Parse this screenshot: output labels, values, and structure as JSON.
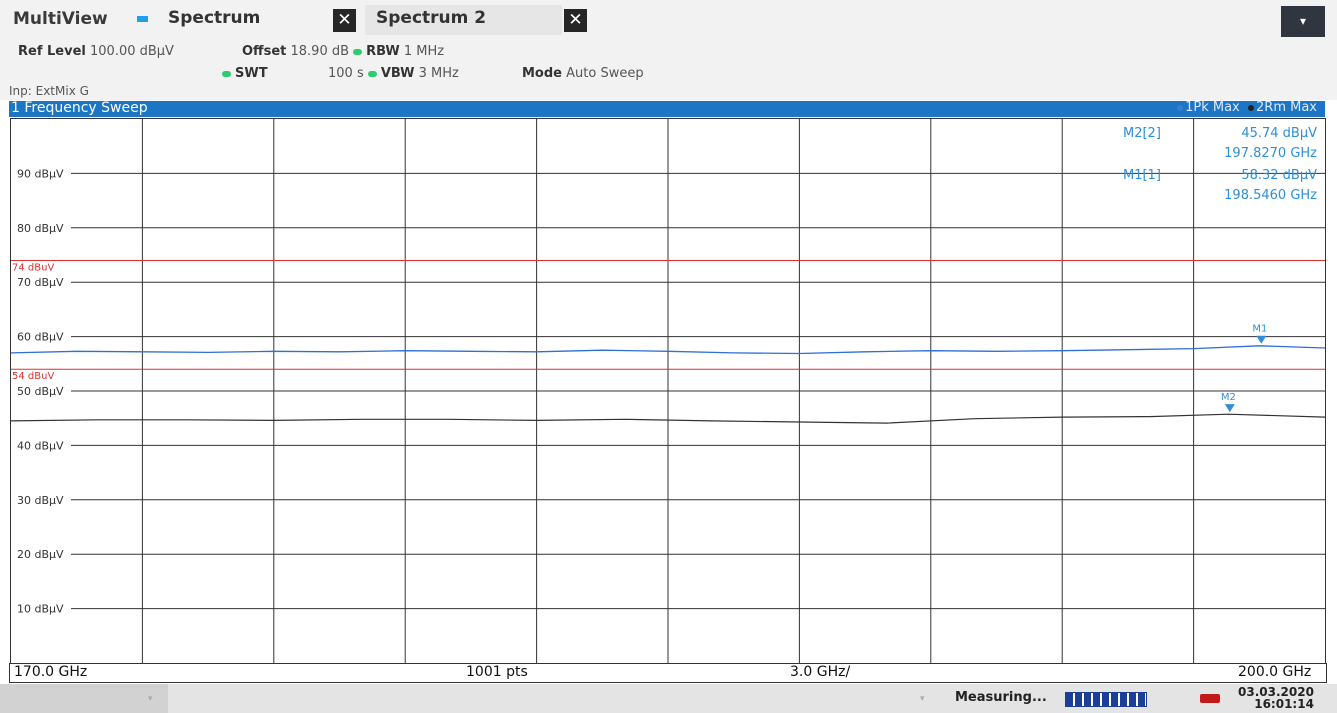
{
  "app": {
    "title": "MultiView"
  },
  "tabs": [
    {
      "label": "Spectrum"
    },
    {
      "label": "Spectrum 2"
    }
  ],
  "params": {
    "ref_level_label": "Ref Level",
    "ref_level_value": "100.00 dBµV",
    "offset_label": "Offset",
    "offset_value": "18.90 dB",
    "rbw_label": "RBW",
    "rbw_value": "1 MHz",
    "swt_label": "SWT",
    "swt_value": "100 s",
    "vbw_label": "VBW",
    "vbw_value": "3 MHz",
    "mode_label": "Mode",
    "mode_value": "Auto Sweep",
    "input": "Inp: ExtMix G"
  },
  "trace_window": {
    "title": "1 Frequency Sweep",
    "legend": [
      {
        "label": "1Pk Max",
        "color": "#3a7bd5"
      },
      {
        "label": "2Rm Max",
        "color": "#222222"
      }
    ]
  },
  "bottom": {
    "start": "170.0 GHz",
    "points": "1001 pts",
    "span": "3.0 GHz/",
    "stop": "200.0 GHz"
  },
  "status": {
    "text": "Measuring...",
    "date": "03.03.2020",
    "time": "16:01:14"
  },
  "chart_data": {
    "type": "line",
    "xlim": [
      170.0,
      200.0
    ],
    "ylim": [
      0,
      100
    ],
    "y_ticks": [
      "90 dBµV",
      "80 dBµV",
      "70 dBµV",
      "60 dBµV",
      "50 dBµV",
      "40 dBµV",
      "30 dBµV",
      "20 dBµV",
      "10 dBµV"
    ],
    "y_tick_values": [
      90,
      80,
      70,
      60,
      50,
      40,
      30,
      20,
      10
    ],
    "grid": true,
    "limit_lines": [
      {
        "label": "74 dBuV",
        "value": 74,
        "color": "#e03030"
      },
      {
        "label": "54 dBuV",
        "value": 54,
        "color": "#e03030"
      }
    ],
    "series": [
      {
        "name": "1Pk Max",
        "color": "#2f6fd6",
        "x": [
          170,
          171.5,
          173,
          174.5,
          176,
          177.5,
          179,
          180.5,
          182,
          183.5,
          185,
          186.5,
          188,
          189.5,
          191,
          192.5,
          194,
          195.5,
          197,
          198.5,
          200
        ],
        "values": [
          57.0,
          57.3,
          57.2,
          57.1,
          57.3,
          57.2,
          57.4,
          57.3,
          57.2,
          57.5,
          57.3,
          57.0,
          56.9,
          57.2,
          57.4,
          57.3,
          57.4,
          57.6,
          57.8,
          58.3,
          57.9
        ]
      },
      {
        "name": "2Rm Max",
        "color": "#333333",
        "x": [
          170,
          172,
          174,
          176,
          178,
          180,
          182,
          184,
          186,
          188,
          190,
          192,
          194,
          196,
          197.8,
          200
        ],
        "values": [
          44.5,
          44.7,
          44.7,
          44.6,
          44.8,
          44.8,
          44.6,
          44.8,
          44.5,
          44.3,
          44.1,
          44.9,
          45.2,
          45.3,
          45.74,
          45.2
        ]
      }
    ],
    "markers": [
      {
        "label": "M1",
        "x": 198.546,
        "y": 58.32,
        "color": "#2f8fd8"
      },
      {
        "label": "M2",
        "x": 197.827,
        "y": 45.74,
        "color": "#2f8fd8"
      }
    ],
    "marker_table": [
      {
        "id": "M2[2]",
        "value": "45.74 dBµV",
        "freq": "197.8270 GHz"
      },
      {
        "id": "M1[1]",
        "value": "58.32 dBµV",
        "freq": "198.5460 GHz"
      }
    ]
  }
}
